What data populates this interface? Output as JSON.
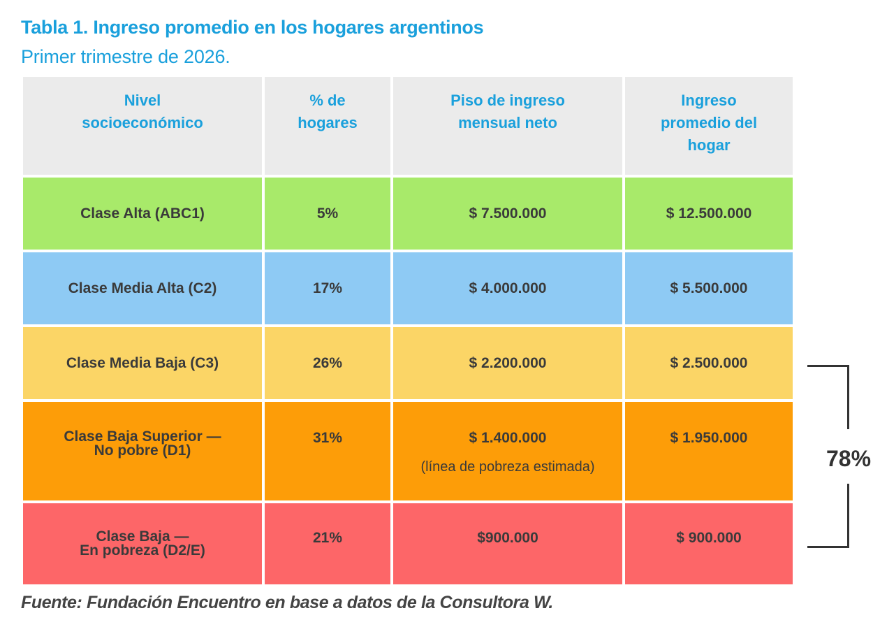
{
  "title": "Tabla 1. Ingreso promedio en los hogares argentinos",
  "subtitle": "Primer trimestre de 2026.",
  "table": {
    "headers": [
      [
        "Nivel",
        "socioeconómico"
      ],
      [
        "% de",
        "hogares"
      ],
      [
        "Piso de ingreso",
        "mensual neto"
      ],
      [
        "Ingreso",
        "promedio del",
        "hogar"
      ]
    ],
    "rows": [
      {
        "nivel": [
          "Clase Alta (ABC1)"
        ],
        "pct": "5%",
        "piso": "$ 7.500.000",
        "promedio": "$ 12.500.000",
        "color": "#a8ea6a"
      },
      {
        "nivel": [
          "Clase Media Alta (C2)"
        ],
        "pct": "17%",
        "piso": "$ 4.000.000",
        "promedio": "$ 5.500.000",
        "color": "#8ecaf4"
      },
      {
        "nivel": [
          "Clase Media Baja (C3)"
        ],
        "pct": "26%",
        "piso": "$ 2.200.000",
        "promedio": "$ 2.500.000",
        "color": "#fbd566"
      },
      {
        "nivel": [
          "Clase Baja Superior —",
          "No pobre (D1)"
        ],
        "pct": "31%",
        "piso": "$ 1.400.000",
        "piso_note": "(línea de pobreza estimada)",
        "promedio": "$ 1.950.000",
        "color": "#fd9d08"
      },
      {
        "nivel": [
          "Clase Baja —",
          "En pobreza (D2/E)"
        ],
        "pct": "21%",
        "piso": "$900.000",
        "promedio": "$ 900.000",
        "color": "#fd6668"
      }
    ]
  },
  "bracket": {
    "label": "78%"
  },
  "source": "Fuente: Fundación Encuentro en base a datos de la Consultora W.",
  "colors": {
    "accent": "#1aa0dc",
    "header_bg": "#ebebeb"
  }
}
